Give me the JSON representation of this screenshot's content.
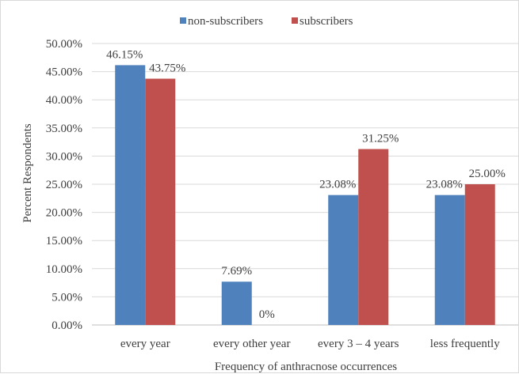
{
  "chart_data": {
    "type": "bar",
    "title": "",
    "xlabel": "Frequency of anthracnose occurrences",
    "ylabel": "Percent Respondents",
    "categories": [
      "every year",
      "every other year",
      "every 3 – 4 years",
      "less frequently"
    ],
    "series": [
      {
        "name": "non-subscribers",
        "color": "#4f81bd",
        "values": [
          46.15,
          7.69,
          23.08,
          23.08
        ],
        "labels": [
          "46.15%",
          "7.69%",
          "23.08%",
          "23.08%"
        ]
      },
      {
        "name": "subscribers",
        "color": "#c0504d",
        "values": [
          43.75,
          0,
          31.25,
          25.0
        ],
        "labels": [
          "43.75%",
          "0%",
          "31.25%",
          "25.00%"
        ]
      }
    ],
    "ylim": [
      0,
      50
    ],
    "yticks": [
      0,
      5,
      10,
      15,
      20,
      25,
      30,
      35,
      40,
      45,
      50
    ],
    "ytick_labels": [
      "0.00%",
      "5.00%",
      "10.00%",
      "15.00%",
      "20.00%",
      "25.00%",
      "30.00%",
      "35.00%",
      "40.00%",
      "45.00%",
      "50.00%"
    ],
    "grid": true,
    "legend_position": "top"
  }
}
